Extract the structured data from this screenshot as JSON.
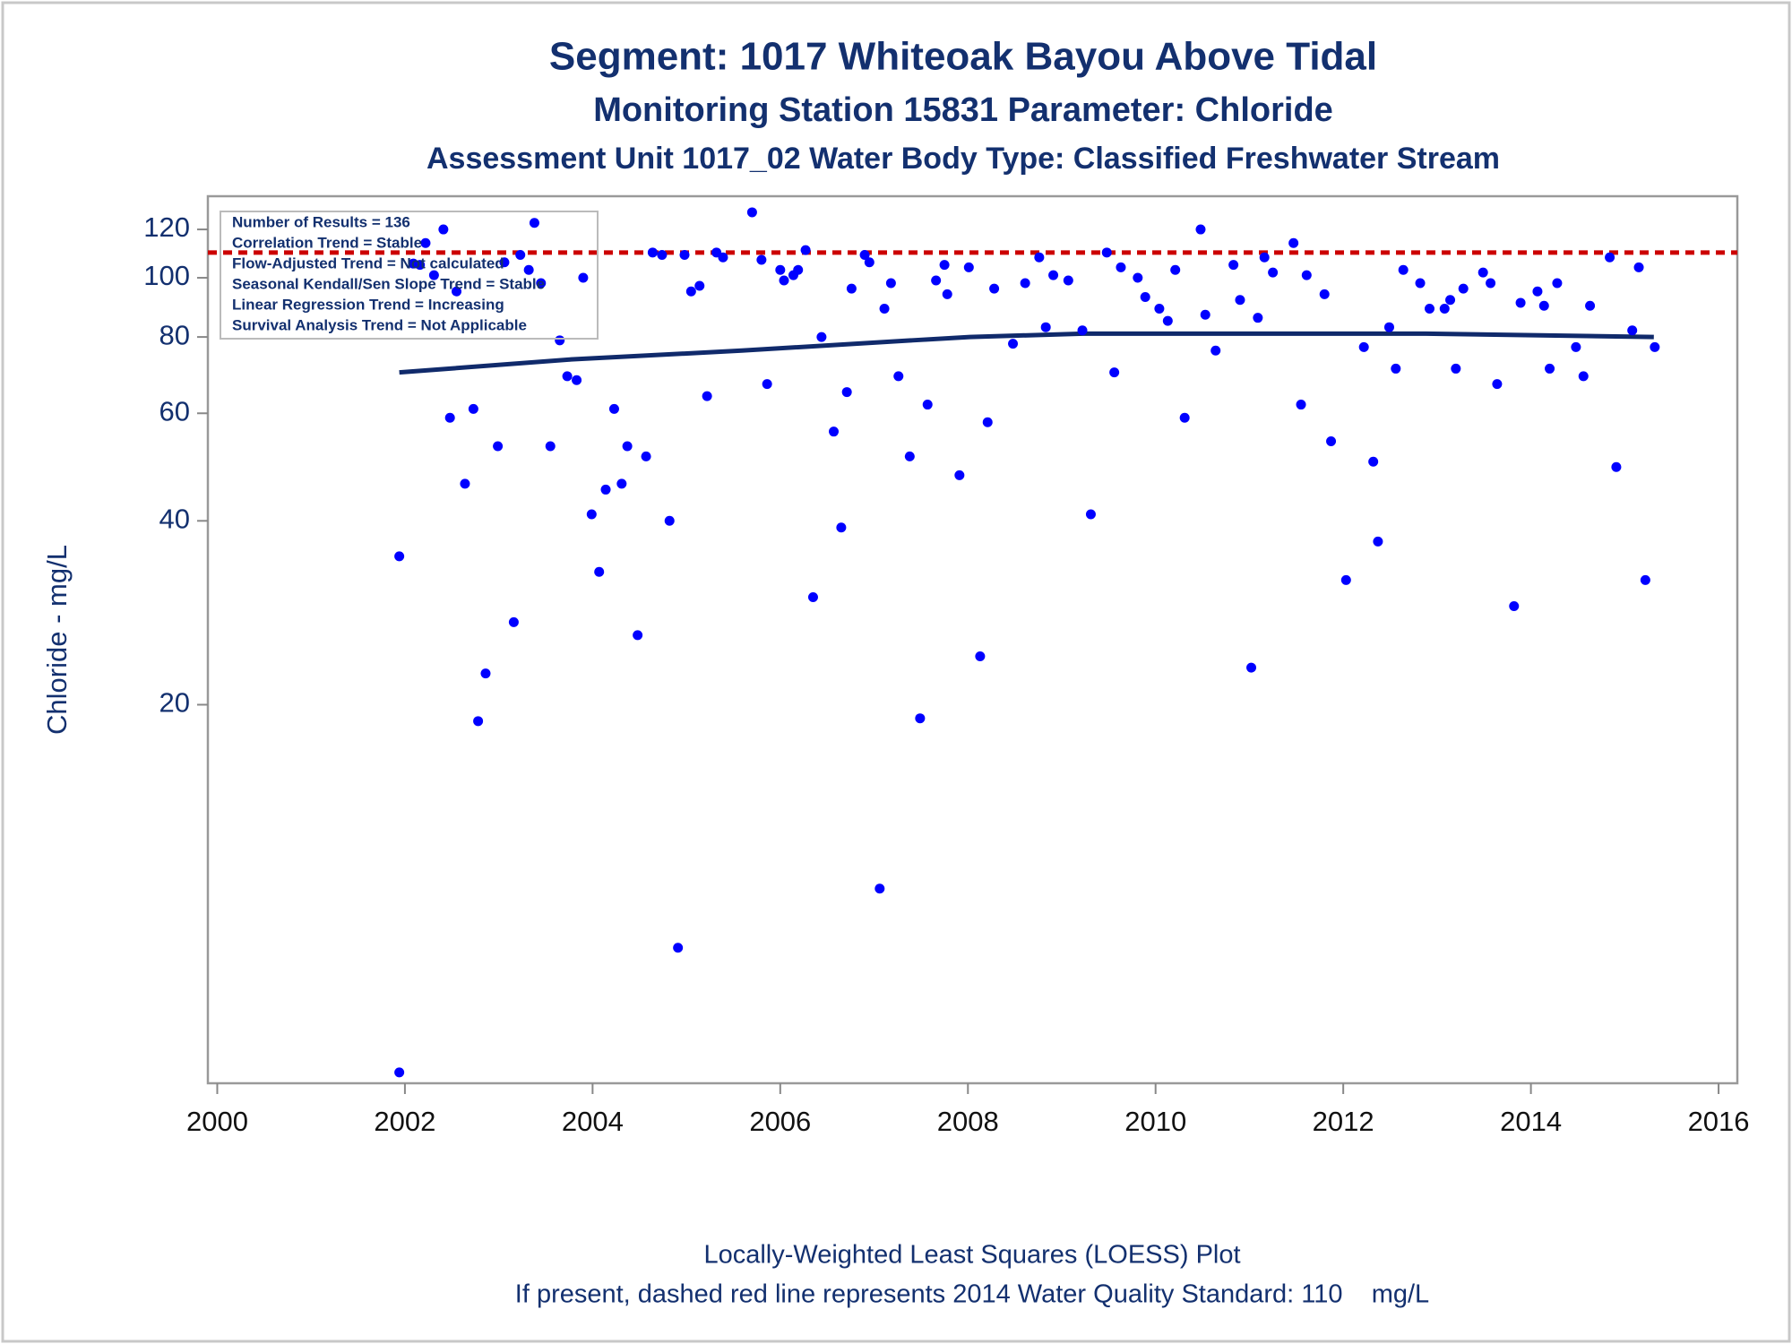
{
  "chart_data": {
    "type": "scatter",
    "title": "Segment: 1017  Whiteoak Bayou Above Tidal",
    "subtitles": [
      "Monitoring Station 15831 Parameter: Chloride",
      "Assessment Unit 1017_02   Water Body Type: Classified Freshwater Stream"
    ],
    "ylabel": "Chloride - mg/L",
    "footnotes": [
      "Locally-Weighted Least Squares (LOESS) Plot",
      "If present, dashed red line represents 2014 Water Quality Standard: 110    mg/L"
    ],
    "annotations": [
      "Number of Results = 136",
      "Correlation Trend = Stable",
      "Flow-Adjusted Trend = Not calculated",
      "Seasonal Kendall/Sen Slope Trend = Stable",
      "Linear Regression Trend = Increasing",
      "Survival Analysis Trend = Not Applicable"
    ],
    "log_y": true,
    "xlim": [
      1999.9,
      2016.2
    ],
    "ylim": [
      4.8,
      136
    ],
    "xticks": [
      2000,
      2002,
      2004,
      2006,
      2008,
      2010,
      2012,
      2014,
      2016
    ],
    "yticks": [
      20,
      40,
      60,
      80,
      100,
      120
    ],
    "color": "#0000ff",
    "x": [
      2001.94,
      2001.94,
      2002.09,
      2002.16,
      2002.22,
      2002.31,
      2002.41,
      2002.48,
      2002.55,
      2002.64,
      2002.73,
      2002.78,
      2002.86,
      2002.99,
      2003.06,
      2003.16,
      2003.23,
      2003.32,
      2003.38,
      2003.45,
      2003.55,
      2003.65,
      2003.73,
      2003.83,
      2003.9,
      2003.99,
      2004.07,
      2004.14,
      2004.23,
      2004.31,
      2004.37,
      2004.48,
      2004.57,
      2004.64,
      2004.74,
      2004.82,
      2004.91,
      2004.98,
      2005.05,
      2005.14,
      2005.22,
      2005.32,
      2005.39,
      2005.7,
      2005.8,
      2005.86,
      2006.0,
      2006.04,
      2006.14,
      2006.19,
      2006.27,
      2006.35,
      2006.44,
      2006.57,
      2006.65,
      2006.71,
      2006.76,
      2006.9,
      2006.95,
      2007.06,
      2007.11,
      2007.18,
      2007.26,
      2007.38,
      2007.49,
      2007.57,
      2007.66,
      2007.75,
      2007.78,
      2007.91,
      2008.01,
      2008.13,
      2008.21,
      2008.28,
      2008.48,
      2008.61,
      2008.76,
      2008.83,
      2008.91,
      2009.07,
      2009.22,
      2009.31,
      2009.48,
      2009.56,
      2009.63,
      2009.81,
      2009.89,
      2010.04,
      2010.13,
      2010.21,
      2010.31,
      2010.48,
      2010.53,
      2010.64,
      2010.83,
      2010.9,
      2011.02,
      2011.09,
      2011.16,
      2011.25,
      2011.47,
      2011.55,
      2011.61,
      2011.8,
      2011.87,
      2012.03,
      2012.22,
      2012.32,
      2012.37,
      2012.49,
      2012.56,
      2012.64,
      2012.82,
      2012.92,
      2013.08,
      2013.14,
      2013.2,
      2013.28,
      2013.49,
      2013.57,
      2013.64,
      2013.82,
      2013.89,
      2014.07,
      2014.14,
      2014.2,
      2014.28,
      2014.48,
      2014.56,
      2014.63,
      2014.84,
      2014.91,
      2015.08,
      2015.15,
      2015.22,
      2015.32
    ],
    "values": [
      35,
      5,
      105.5,
      105,
      114,
      101,
      120,
      59,
      95,
      46,
      61,
      18.8,
      22.5,
      53,
      106,
      27.3,
      109,
      103,
      123,
      98,
      53,
      79,
      69,
      68,
      100,
      41,
      33,
      45,
      61,
      46,
      53,
      26,
      51,
      110,
      109,
      40,
      8,
      109,
      95,
      97,
      64,
      110,
      108,
      128,
      107,
      67,
      103,
      99,
      101,
      103,
      111,
      30,
      80,
      56,
      39,
      65,
      96,
      109,
      106,
      10,
      89,
      98,
      69,
      51,
      19,
      62,
      99,
      105,
      94,
      47.5,
      104,
      24,
      58,
      96,
      78,
      98,
      108,
      83,
      101,
      99,
      82,
      41,
      110,
      70,
      104,
      100,
      93,
      89,
      85,
      103,
      59,
      120,
      87,
      76,
      105,
      92,
      23,
      86,
      108,
      102,
      114,
      62,
      101,
      94,
      54,
      32,
      77,
      50,
      37,
      83,
      71,
      103,
      98,
      89,
      89,
      92,
      71,
      96,
      102,
      98,
      67,
      29,
      91,
      95,
      90,
      71,
      98,
      77,
      69,
      90,
      108,
      49,
      82,
      104,
      32,
      77
    ],
    "loess": {
      "color": "#102a6b",
      "x": [
        2001.94,
        2003.77,
        2005.59,
        2007.41,
        2008.02,
        2009.23,
        2011.06,
        2012.88,
        2014.1,
        2015.31
      ],
      "values": [
        70,
        73.5,
        76,
        79,
        80,
        81,
        81,
        81,
        80.5,
        80
      ]
    },
    "reference_line": {
      "value": 110,
      "color": "#cc0000"
    }
  }
}
